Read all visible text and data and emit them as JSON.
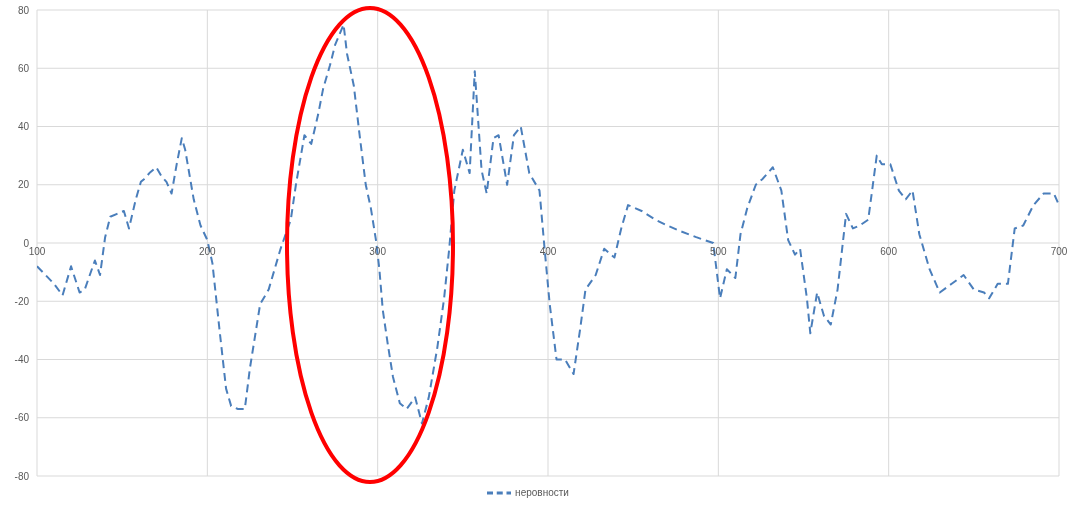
{
  "chart_data": {
    "type": "line",
    "x": [
      100,
      105,
      110,
      115,
      120,
      125,
      128,
      134,
      137,
      140,
      143,
      147,
      151,
      154,
      158,
      161,
      163,
      166,
      170,
      173,
      176,
      179,
      182,
      185,
      187,
      192,
      196,
      200,
      203,
      207,
      211,
      214,
      218,
      222,
      225,
      231,
      236,
      243,
      249,
      252,
      257,
      261,
      265,
      268,
      272,
      275,
      280,
      282,
      286,
      289,
      293,
      296,
      299,
      301,
      303,
      306,
      309,
      313,
      317,
      322,
      326,
      330,
      335,
      339,
      342,
      345,
      350,
      354,
      357,
      361,
      364,
      368,
      371,
      376,
      380,
      384,
      389,
      395,
      398,
      401,
      405,
      410,
      415,
      419,
      422,
      428,
      433,
      439,
      443,
      447,
      455,
      463,
      470,
      478,
      487,
      492,
      497,
      501,
      505,
      510,
      513,
      517,
      522,
      526,
      532,
      537,
      541,
      545,
      548,
      552,
      554,
      558,
      562,
      566,
      570,
      575,
      579,
      583,
      588,
      593,
      596,
      601,
      606,
      610,
      614,
      618,
      624,
      630,
      637,
      644,
      650,
      656,
      659,
      664,
      670,
      674,
      679,
      685,
      691,
      697,
      700
    ],
    "series": [
      {
        "name": "неровности",
        "color": "#4a7ebb",
        "values": [
          -8,
          -11,
          -14,
          -18,
          -8,
          -17,
          -16,
          -6,
          -11,
          2,
          9,
          10,
          11,
          5,
          15,
          21,
          22,
          24,
          26,
          23,
          21,
          17,
          27,
          36,
          32,
          15,
          6,
          1,
          -7,
          -29,
          -50,
          -56,
          -57,
          -57,
          -43,
          -21,
          -16,
          -2,
          8,
          20,
          37,
          34,
          44,
          53,
          61,
          68,
          75,
          65,
          54,
          39,
          20,
          12,
          1,
          -9,
          -23,
          -35,
          -46,
          -55,
          -57,
          -53,
          -62,
          -53,
          -36,
          -19,
          -2,
          18,
          32,
          24,
          59,
          25,
          17,
          36,
          37,
          20,
          37,
          40,
          24,
          18,
          -2,
          -21,
          -40,
          -40,
          -45,
          -29,
          -16,
          -11,
          -2,
          -5,
          5,
          13,
          11,
          8,
          6,
          4,
          2,
          1,
          0,
          -19,
          -9,
          -12,
          3,
          12,
          20,
          22,
          26,
          18,
          1,
          -4,
          -2,
          -19,
          -31,
          -17,
          -25,
          -28,
          -16,
          10,
          5,
          6,
          8,
          30,
          27,
          27,
          18,
          15,
          18,
          3,
          -9,
          -17,
          -14,
          -11,
          -16,
          -17,
          -19,
          -14,
          -14,
          5,
          6,
          13,
          17,
          17,
          13
        ]
      }
    ],
    "xlim": [
      100,
      700
    ],
    "xticks": [
      100,
      200,
      300,
      400,
      500,
      600,
      700
    ],
    "ylim": [
      -80,
      80
    ],
    "yticks": [
      -80,
      -60,
      -40,
      -20,
      0,
      20,
      40,
      60,
      80
    ],
    "grid": true,
    "legend": "bottom",
    "line_style": "dashed",
    "marker": "none"
  }
}
